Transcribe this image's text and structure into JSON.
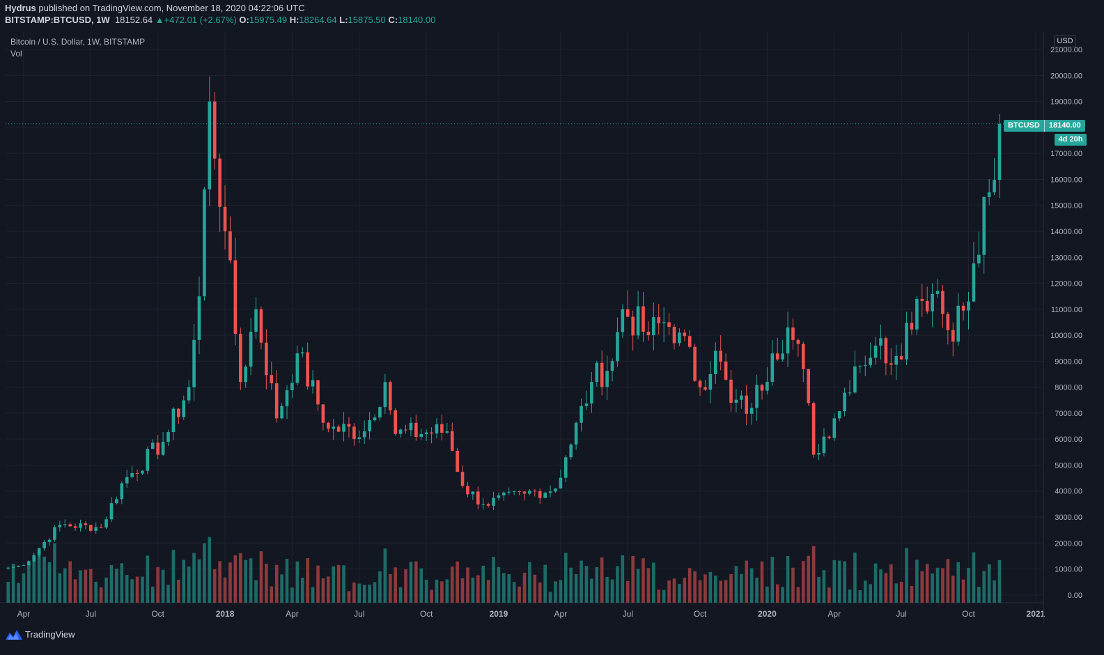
{
  "header": {
    "publisher": "Hydrus",
    "published_text": "published on TradingView.com, November 18, 2020 04:22:06 UTC",
    "symbol": "BITSTAMP:BTCUSD, 1W",
    "last": "18152.64",
    "change_arrow": "▲",
    "change": "+472.01 (+2.67%)",
    "o_label": "O:",
    "o_value": "15975.49",
    "h_label": "H:",
    "h_value": "18264.64",
    "l_label": "L:",
    "l_value": "15875.50",
    "c_label": "C:",
    "c_value": "18140.00"
  },
  "legend": {
    "series_title": "Bitcoin / U.S. Dollar, 1W, BITSTAMP",
    "volume_label": "Vol"
  },
  "scale": {
    "currency": "USD"
  },
  "price_tag": {
    "symbol": "BTCUSD",
    "value": "18140.00",
    "countdown": "4d 20h"
  },
  "footer": {
    "brand": "TradingView",
    "logo_icon": "tradingview-logo-icon"
  },
  "colors": {
    "bg": "#131722",
    "grid": "#1f2330",
    "up": "#26a69a",
    "down": "#ef5350",
    "vol_up": "#1e6b67",
    "vol_down": "#8c3a3c",
    "text": "#b2b5be"
  },
  "chart_data": {
    "type": "candlestick",
    "title": "Bitcoin / U.S. Dollar, 1W, BITSTAMP",
    "y_ticks": [
      0,
      1000,
      2000,
      3000,
      4000,
      5000,
      6000,
      7000,
      8000,
      9000,
      10000,
      11000,
      12000,
      13000,
      14000,
      15000,
      16000,
      17000,
      18000,
      19000,
      20000,
      21000
    ],
    "y_tick_labels": [
      "0.00",
      "1000.00",
      "2000.00",
      "3000.00",
      "4000.00",
      "5000.00",
      "6000.00",
      "7000.00",
      "8000.00",
      "9000.00",
      "10000.00",
      "11000.00",
      "12000.00",
      "13000.00",
      "14000.00",
      "15000.00",
      "16000.00",
      "17000.00",
      "18000.00",
      "19000.00",
      "20000.00",
      "21000.00"
    ],
    "ylim": [
      -300,
      21700
    ],
    "x_labels": [
      {
        "label": "Apr",
        "week": 3
      },
      {
        "label": "Jul",
        "week": 16
      },
      {
        "label": "Oct",
        "week": 29
      },
      {
        "label": "2018",
        "week": 42
      },
      {
        "label": "Apr",
        "week": 55
      },
      {
        "label": "Jul",
        "week": 68
      },
      {
        "label": "Oct",
        "week": 81
      },
      {
        "label": "2019",
        "week": 95
      },
      {
        "label": "Apr",
        "week": 107
      },
      {
        "label": "Jul",
        "week": 120
      },
      {
        "label": "Oct",
        "week": 134
      },
      {
        "label": "2020",
        "week": 147
      },
      {
        "label": "Apr",
        "week": 160
      },
      {
        "label": "Jul",
        "week": 173
      },
      {
        "label": "Oct",
        "week": 186
      },
      {
        "label": "2021",
        "week": 199
      }
    ],
    "total_weeks": 201,
    "last_price": 18140,
    "key_points": [
      {
        "week": 0,
        "close": 1050
      },
      {
        "week": 3,
        "close": 1150
      },
      {
        "week": 10,
        "close": 2700
      },
      {
        "week": 18,
        "close": 2600
      },
      {
        "week": 22,
        "close": 4300
      },
      {
        "week": 30,
        "close": 5900
      },
      {
        "week": 35,
        "close": 8000
      },
      {
        "week": 37,
        "close": 11500
      },
      {
        "week": 39,
        "close": 19000
      },
      {
        "week": 42,
        "close": 14000
      },
      {
        "week": 45,
        "close": 8200
      },
      {
        "week": 48,
        "close": 11000
      },
      {
        "week": 52,
        "close": 6800
      },
      {
        "week": 56,
        "close": 9300
      },
      {
        "week": 62,
        "close": 6400
      },
      {
        "week": 69,
        "close": 6300
      },
      {
        "week": 73,
        "close": 8200
      },
      {
        "week": 75,
        "close": 6200
      },
      {
        "week": 85,
        "close": 6300
      },
      {
        "week": 88,
        "close": 4200
      },
      {
        "week": 92,
        "close": 3500
      },
      {
        "week": 100,
        "close": 3900
      },
      {
        "week": 106,
        "close": 4100
      },
      {
        "week": 108,
        "close": 5300
      },
      {
        "week": 113,
        "close": 8200
      },
      {
        "week": 117,
        "close": 9000
      },
      {
        "week": 119,
        "close": 11000
      },
      {
        "week": 124,
        "close": 10000
      },
      {
        "week": 127,
        "close": 10500
      },
      {
        "week": 130,
        "close": 10100
      },
      {
        "week": 134,
        "close": 8000
      },
      {
        "week": 137,
        "close": 9400
      },
      {
        "week": 140,
        "close": 7400
      },
      {
        "week": 144,
        "close": 7200
      },
      {
        "week": 148,
        "close": 9300
      },
      {
        "week": 151,
        "close": 10300
      },
      {
        "week": 154,
        "close": 8700
      },
      {
        "week": 156,
        "close": 5400
      },
      {
        "week": 160,
        "close": 6800
      },
      {
        "week": 164,
        "close": 8800
      },
      {
        "week": 168,
        "close": 9600
      },
      {
        "week": 172,
        "close": 9200
      },
      {
        "week": 176,
        "close": 11400
      },
      {
        "week": 180,
        "close": 11700
      },
      {
        "week": 182,
        "close": 10200
      },
      {
        "week": 186,
        "close": 11300
      },
      {
        "week": 190,
        "close": 15500
      },
      {
        "week": 191,
        "close": 15980
      },
      {
        "week": 192,
        "close": 18140
      }
    ]
  }
}
